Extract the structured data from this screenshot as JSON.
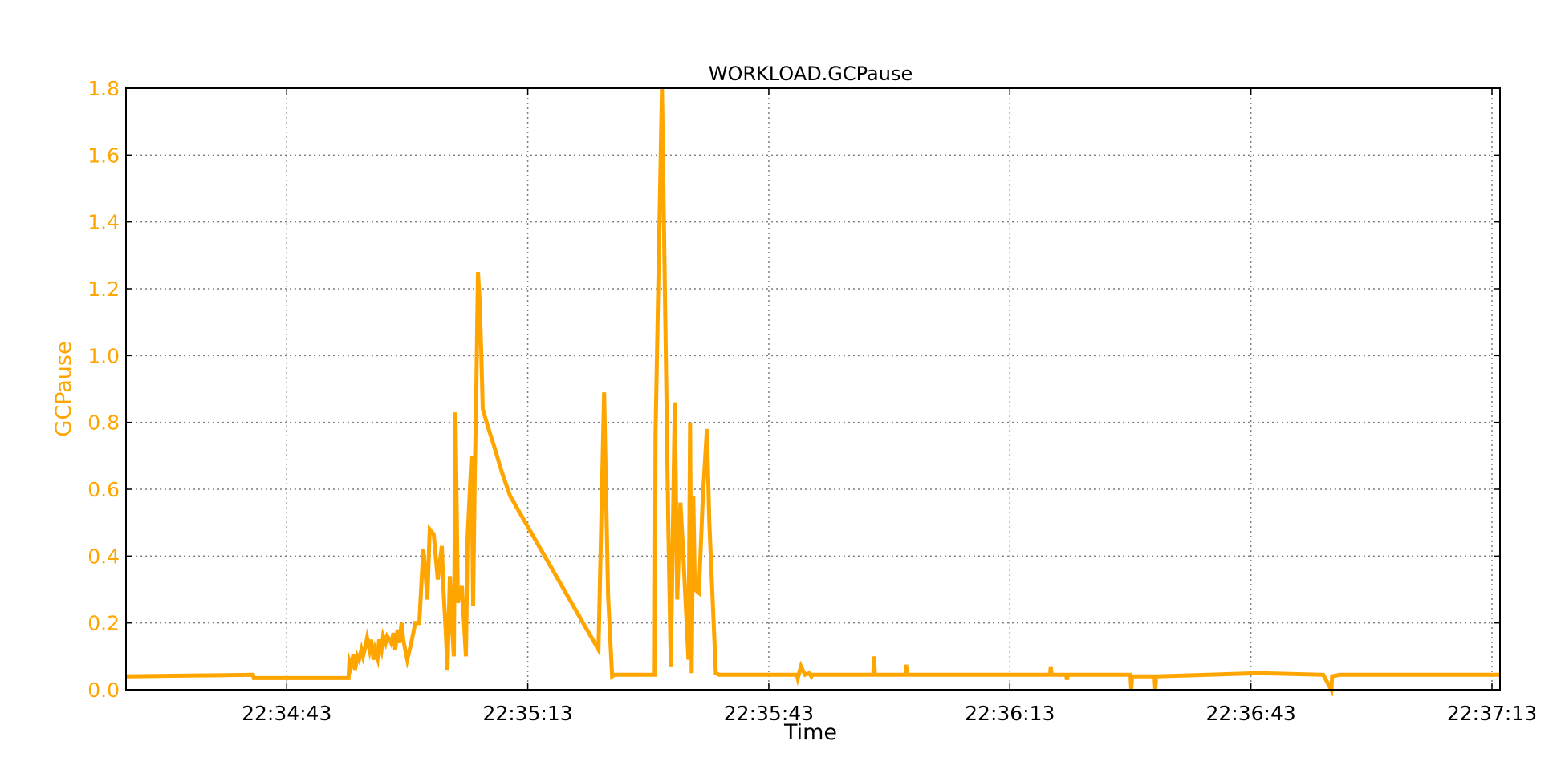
{
  "colors": {
    "series": "#ffa500",
    "axis": "#000000",
    "grid": "#7f7f7f",
    "background": "#ffffff"
  },
  "chart_data": {
    "type": "line",
    "title": "WORKLOAD.GCPause",
    "xlabel": "Time",
    "ylabel": "GCPause",
    "grid": true,
    "legend": "none",
    "xlim": [
      "22:34:23",
      "22:37:14"
    ],
    "ylim": [
      0,
      1.8
    ],
    "x_ticks": [
      "22:34:43",
      "22:35:13",
      "22:35:43",
      "22:36:13",
      "22:36:43",
      "22:37:13"
    ],
    "y_ticks": [
      "0.0",
      "0.2",
      "0.4",
      "0.6",
      "0.8",
      "1.0",
      "1.2",
      "1.4",
      "1.6",
      "1.8"
    ],
    "series": [
      {
        "color": "#ffa500",
        "x": [
          "22:34:23.0",
          "22:34:38.8",
          "22:34:38.9",
          "22:34:50.7",
          "22:34:50.8",
          "22:34:51.0",
          "22:34:51.3",
          "22:34:51.5",
          "22:34:51.8",
          "22:34:52.0",
          "22:34:52.3",
          "22:34:52.5",
          "22:34:52.8",
          "22:34:53.0",
          "22:34:53.3",
          "22:34:53.5",
          "22:34:53.8",
          "22:34:54.0",
          "22:34:54.3",
          "22:34:54.5",
          "22:34:54.8",
          "22:34:55.0",
          "22:34:55.3",
          "22:34:55.5",
          "22:34:55.8",
          "22:34:56.0",
          "22:34:56.3",
          "22:34:56.5",
          "22:34:56.8",
          "22:34:57.0",
          "22:34:57.3",
          "22:34:57.5",
          "22:34:58.0",
          "22:34:58.5",
          "22:34:59.0",
          "22:34:59.5",
          "22:35:00.0",
          "22:35:00.3",
          "22:35:00.5",
          "22:35:00.8",
          "22:35:01.3",
          "22:35:01.8",
          "22:35:02.3",
          "22:35:02.5",
          "22:35:02.8",
          "22:35:03.0",
          "22:35:03.3",
          "22:35:03.5",
          "22:35:03.8",
          "22:35:04.0",
          "22:35:04.3",
          "22:35:04.8",
          "22:35:05.3",
          "22:35:05.5",
          "22:35:06.0",
          "22:35:06.2",
          "22:35:06.4",
          "22:35:06.6",
          "22:35:06.8",
          "22:35:07.0",
          "22:35:07.2",
          "22:35:07.4",
          "22:35:08.0",
          "22:35:08.8",
          "22:35:09.8",
          "22:35:10.8",
          "22:35:21.8",
          "22:35:22.5",
          "22:35:23.0",
          "22:35:23.5",
          "22:35:23.8",
          "22:35:28.8",
          "22:35:28.9",
          "22:35:29.7",
          "22:35:30.5",
          "22:35:30.8",
          "22:35:31.3",
          "22:35:31.6",
          "22:35:32.0",
          "22:35:32.3",
          "22:35:33.0",
          "22:35:33.2",
          "22:35:33.4",
          "22:35:33.6",
          "22:35:33.8",
          "22:35:34.3",
          "22:35:34.8",
          "22:35:35.3",
          "22:35:35.6",
          "22:35:36.4",
          "22:35:36.8",
          "22:35:46.5",
          "22:35:46.6",
          "22:35:47.0",
          "22:35:47.5",
          "22:35:48.0",
          "22:35:48.3",
          "22:35:48.4",
          "22:35:56.0",
          "22:35:56.1",
          "22:35:56.2",
          "22:36:00.0",
          "22:36:00.1",
          "22:36:00.2",
          "22:36:18.0",
          "22:36:18.1",
          "22:36:18.2",
          "22:36:20.0",
          "22:36:20.1",
          "22:36:20.2",
          "22:36:28.0",
          "22:36:28.1",
          "22:36:28.2",
          "22:36:31.0",
          "22:36:31.1",
          "22:36:31.2",
          "22:36:44.0",
          "22:36:44.1",
          "22:36:52.0",
          "22:36:53.0",
          "22:36:53.1",
          "22:36:54.0",
          "22:36:54.1",
          "22:37:14.0"
        ],
        "y": [
          0.04,
          0.045,
          0.035,
          0.035,
          0.085,
          0.07,
          0.105,
          0.06,
          0.1,
          0.09,
          0.12,
          0.1,
          0.13,
          0.155,
          0.12,
          0.15,
          0.09,
          0.12,
          0.095,
          0.15,
          0.12,
          0.16,
          0.14,
          0.16,
          0.15,
          0.14,
          0.17,
          0.12,
          0.18,
          0.14,
          0.2,
          0.15,
          0.09,
          0.14,
          0.2,
          0.2,
          0.42,
          0.34,
          0.27,
          0.48,
          0.465,
          0.33,
          0.43,
          0.3,
          0.17,
          0.06,
          0.34,
          0.22,
          0.1,
          0.83,
          0.26,
          0.31,
          0.1,
          0.45,
          0.7,
          0.25,
          0.64,
          0.9,
          1.25,
          1.17,
          1.02,
          0.84,
          0.79,
          0.73,
          0.65,
          0.58,
          0.12,
          0.89,
          0.28,
          0.04,
          0.045,
          0.045,
          0.77,
          1.8,
          0.47,
          0.07,
          0.86,
          0.27,
          0.56,
          0.43,
          0.09,
          0.8,
          0.05,
          0.58,
          0.3,
          0.29,
          0.58,
          0.78,
          0.5,
          0.05,
          0.045,
          0.045,
          0.035,
          0.07,
          0.045,
          0.05,
          0.04,
          0.045,
          0.045,
          0.1,
          0.045,
          0.045,
          0.075,
          0.045,
          0.045,
          0.07,
          0.045,
          0.045,
          0.03,
          0.045,
          0.045,
          0.0,
          0.04,
          0.04,
          0.0,
          0.04,
          0.05,
          0.05,
          0.045,
          0.0,
          0.04,
          0.045,
          0.045,
          0.045
        ]
      }
    ]
  }
}
